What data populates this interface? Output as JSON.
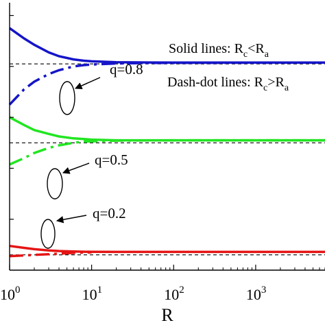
{
  "chart_data": {
    "type": "line",
    "xlabel": "R",
    "ylabel": "",
    "x_scale": "log",
    "xlim": [
      1,
      7000
    ],
    "x_ticks": [
      {
        "base": "10",
        "exp": "0"
      },
      {
        "base": "10",
        "exp": "1"
      },
      {
        "base": "10",
        "exp": "2"
      },
      {
        "base": "10",
        "exp": "3"
      }
    ],
    "grid": false,
    "legend_notes": [
      {
        "prefix": "Solid lines: R",
        "sub1": "c",
        "mid": "<R",
        "sub2": "a"
      },
      {
        "prefix": "Dash-dot lines: R",
        "sub1": "c",
        "mid": ">R",
        "sub2": "a"
      }
    ],
    "series": [
      {
        "label": "q=0.8",
        "color": "#1515c8",
        "asymptote": 0.62,
        "solid": {
          "x": [
            1,
            1.5,
            2,
            3,
            4,
            6,
            8,
            10,
            20,
            50,
            100,
            1000,
            7000
          ],
          "y": [
            0.9,
            0.82,
            0.77,
            0.71,
            0.68,
            0.655,
            0.645,
            0.64,
            0.633,
            0.631,
            0.63,
            0.63,
            0.63
          ]
        },
        "dashdot": {
          "x": [
            1,
            1.5,
            2,
            3,
            4,
            6,
            8,
            10,
            20,
            50,
            100,
            1000,
            7000
          ],
          "y": [
            0.3,
            0.42,
            0.48,
            0.54,
            0.57,
            0.6,
            0.61,
            0.615,
            0.623,
            0.627,
            0.628,
            0.629,
            0.63
          ]
        }
      },
      {
        "label": "q=0.5",
        "color": "#22e522",
        "asymptote": 0.0,
        "solid": {
          "x": [
            1,
            1.5,
            2,
            3,
            4,
            6,
            8,
            10,
            20,
            50,
            100,
            1000,
            7000
          ],
          "y": [
            0.2,
            0.14,
            0.1,
            0.07,
            0.05,
            0.035,
            0.03,
            0.025,
            0.02,
            0.02,
            0.02,
            0.02,
            0.02
          ]
        },
        "dashdot": {
          "x": [
            1,
            1.5,
            2,
            3,
            4,
            6,
            8,
            10,
            20,
            50,
            100,
            1000,
            7000
          ],
          "y": [
            -0.17,
            -0.12,
            -0.08,
            -0.04,
            -0.02,
            0.0,
            0.01,
            0.012,
            0.017,
            0.019,
            0.02,
            0.02,
            0.02
          ]
        }
      },
      {
        "label": "q=0.2",
        "color": "#e51515",
        "asymptote": -0.88,
        "solid": {
          "x": [
            1,
            1.5,
            2,
            3,
            4,
            6,
            8,
            10,
            20,
            50,
            100,
            1000,
            7000
          ],
          "y": [
            -0.81,
            -0.825,
            -0.835,
            -0.845,
            -0.85,
            -0.853,
            -0.855,
            -0.856,
            -0.857,
            -0.857,
            -0.857,
            -0.857,
            -0.857
          ]
        },
        "dashdot": {
          "x": [
            1,
            1.5,
            2,
            3,
            4,
            6,
            8,
            10
          ],
          "y": [
            -0.89,
            -0.885,
            -0.88,
            -0.875,
            -0.87,
            -0.865,
            -0.862,
            -0.86
          ]
        }
      }
    ]
  }
}
